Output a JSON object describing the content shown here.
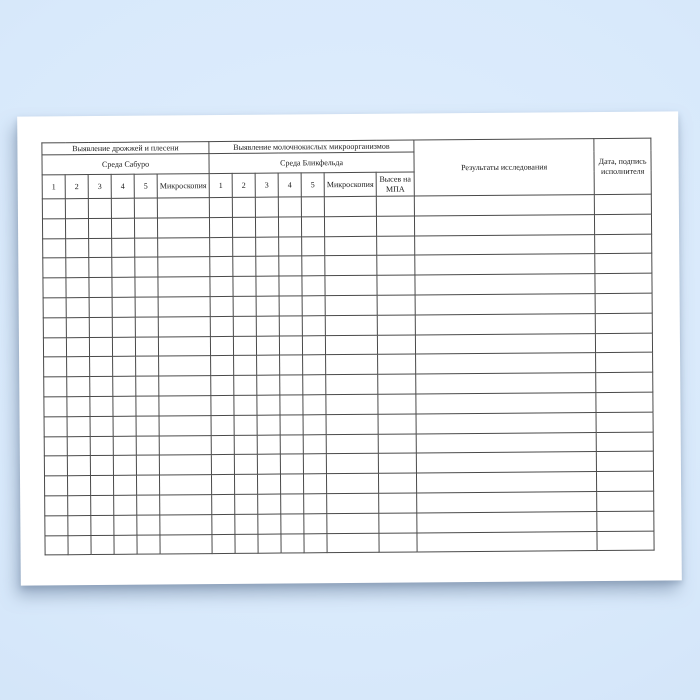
{
  "colors": {
    "background_blue": "#d8e9fb",
    "page_white": "#ffffff",
    "grid_line": "#4a4a4a",
    "text": "#1a1a1a"
  },
  "table": {
    "header": {
      "yeast_mold_group": "Выявление дрожжей и плесени",
      "lactic_group": "Выявление молочнокислых микроорганизмов",
      "sabouraud_medium": "Среда Сабуро",
      "blickfeld_medium": "Среда Бликфельда",
      "numbers": [
        "1",
        "2",
        "3",
        "4",
        "5"
      ],
      "microscopy": "Микроскопия",
      "mpa_plating": "Высев на МПА",
      "results": "Результаты исследования",
      "date_signature": "Дата, подпись исполнителя"
    },
    "body": {
      "row_count": 18,
      "column_count": 15
    }
  }
}
